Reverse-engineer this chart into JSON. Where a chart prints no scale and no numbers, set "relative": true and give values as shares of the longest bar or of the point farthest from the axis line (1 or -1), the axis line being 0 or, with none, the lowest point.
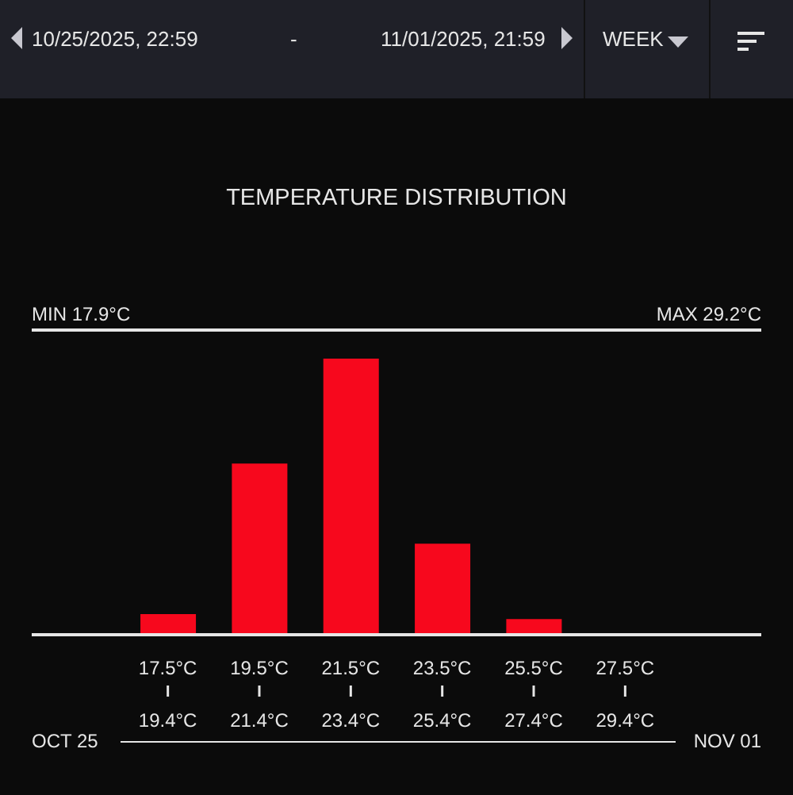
{
  "chart_data": {
    "type": "bar",
    "title": "TEMPERATURE DISTRIBUTION",
    "categories": [
      "17.5°C",
      "19.5°C",
      "21.5°C",
      "23.5°C",
      "25.5°C",
      "27.5°C"
    ],
    "values": [
      0.075,
      0.62,
      1,
      0.33,
      0.057,
      0
    ],
    "color": "#f7081d",
    "relative": true,
    "annotations": [
      "10/25/2025, 22:59",
      "-",
      "11/01/2025, 21:59",
      "WEEK",
      "MIN 17.9°C",
      "MAX 29.2°C",
      "OCT 25",
      "NOV 01",
      {
        "text": "19.4°C",
        "x": "17.5°C"
      },
      {
        "text": "21.4°C",
        "x": "19.5°C"
      },
      {
        "text": "23.4°C",
        "x": "21.5°C"
      },
      {
        "text": "25.4°C",
        "x": "23.5°C"
      },
      {
        "text": "27.4°C",
        "x": "25.5°C"
      },
      {
        "text": "29.4°C",
        "x": "27.5°C"
      }
    ]
  }
}
